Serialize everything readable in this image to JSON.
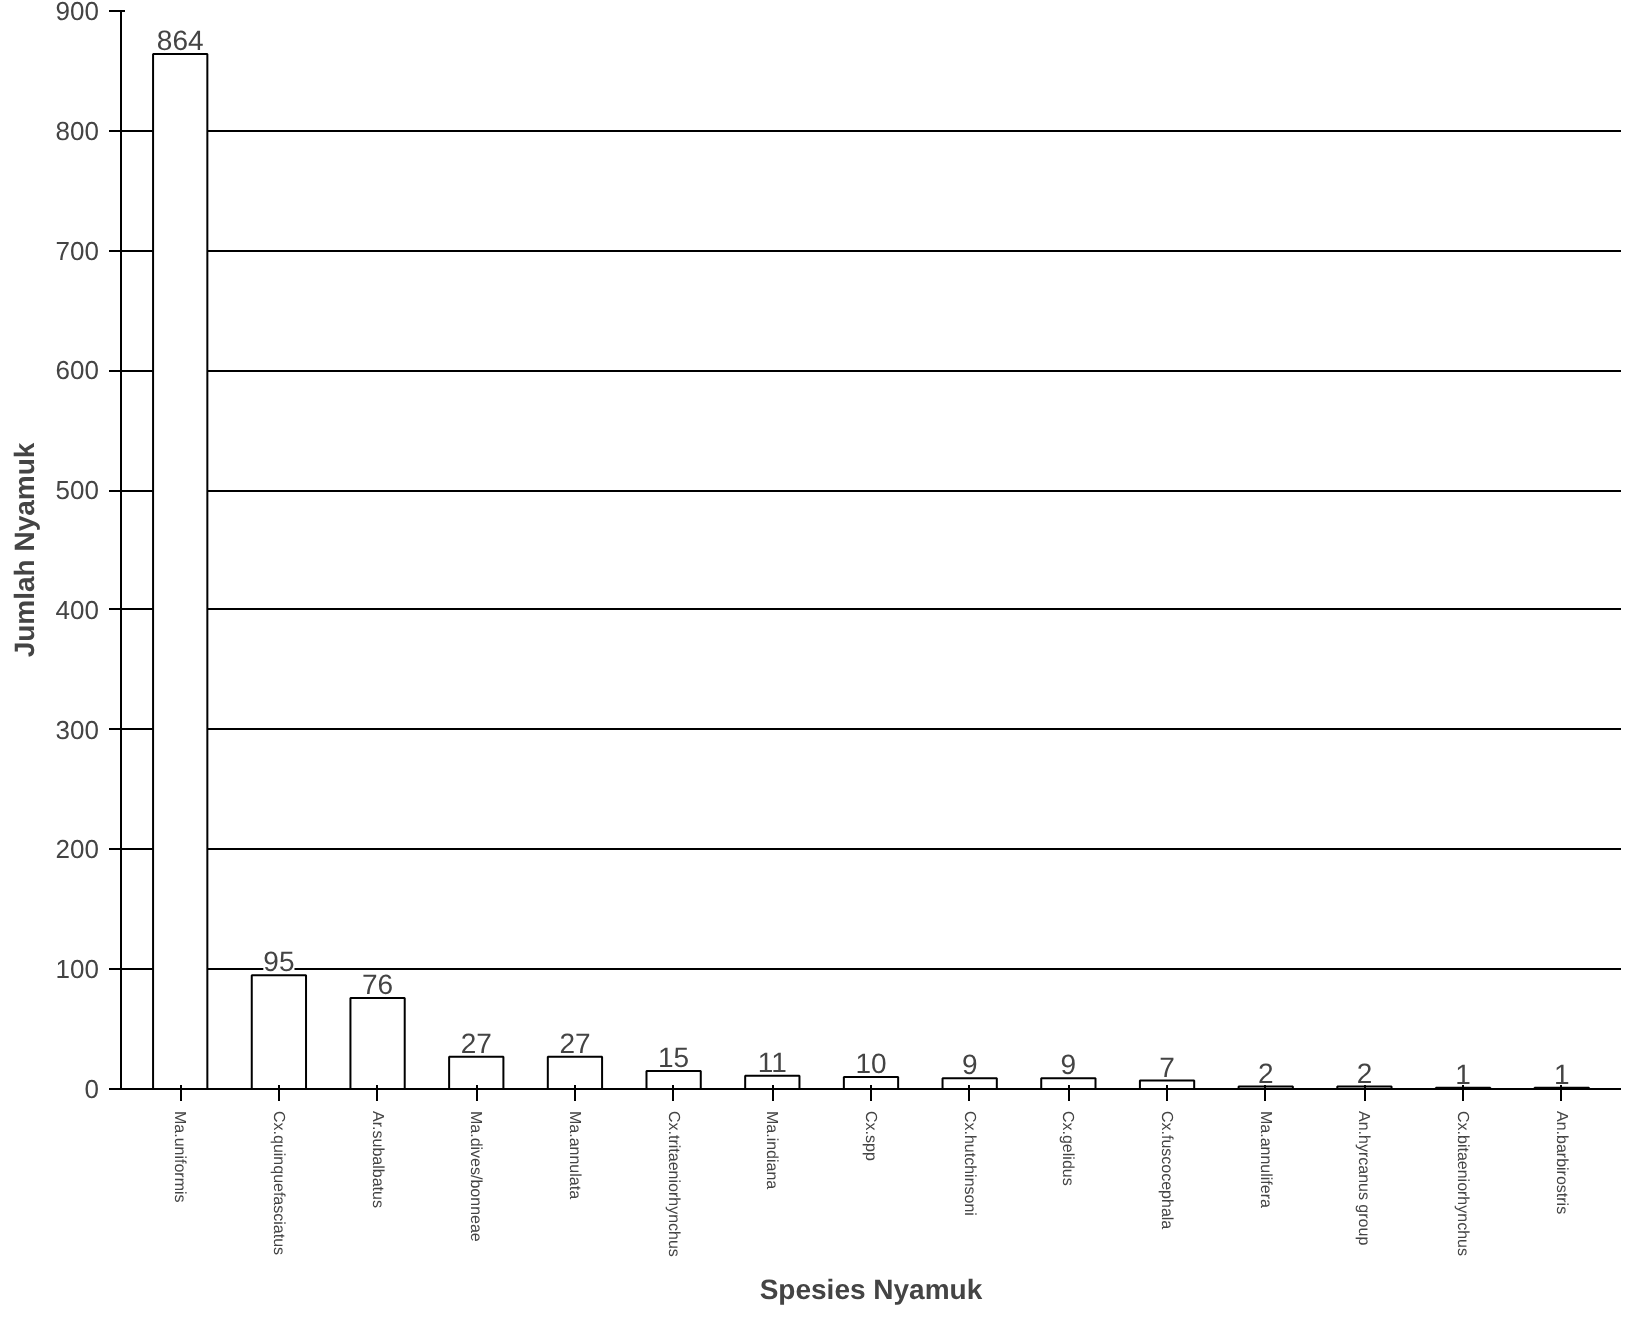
{
  "chart_data": {
    "type": "bar",
    "xlabel": "Spesies Nyamuk",
    "ylabel": "Jumlah Nyamuk",
    "categories": [
      "Ma.uniformis",
      "Cx.quinquefasciatus",
      "Ar.subalbatus",
      "Ma.dives/bonneae",
      "Ma.annulata",
      "Cx.tritaeniorhynchus",
      "Ma.indiana",
      "Cx.spp",
      "Cx.hutchinsoni",
      "Cx.gelidus",
      "Cx.fuscocephala",
      "Ma.annulifera",
      "An.hyrcanus group",
      "Cx.bitaeniorhynchus",
      "An.barbirostris"
    ],
    "values": [
      864,
      95,
      76,
      27,
      27,
      15,
      11,
      10,
      9,
      9,
      7,
      2,
      2,
      1,
      1
    ],
    "color": "#ffffff",
    "data_labels": true,
    "grid": "y",
    "ylim": [
      0,
      900
    ],
    "yticks": [
      0,
      100,
      200,
      300,
      400,
      500,
      600,
      700,
      800,
      900
    ]
  }
}
